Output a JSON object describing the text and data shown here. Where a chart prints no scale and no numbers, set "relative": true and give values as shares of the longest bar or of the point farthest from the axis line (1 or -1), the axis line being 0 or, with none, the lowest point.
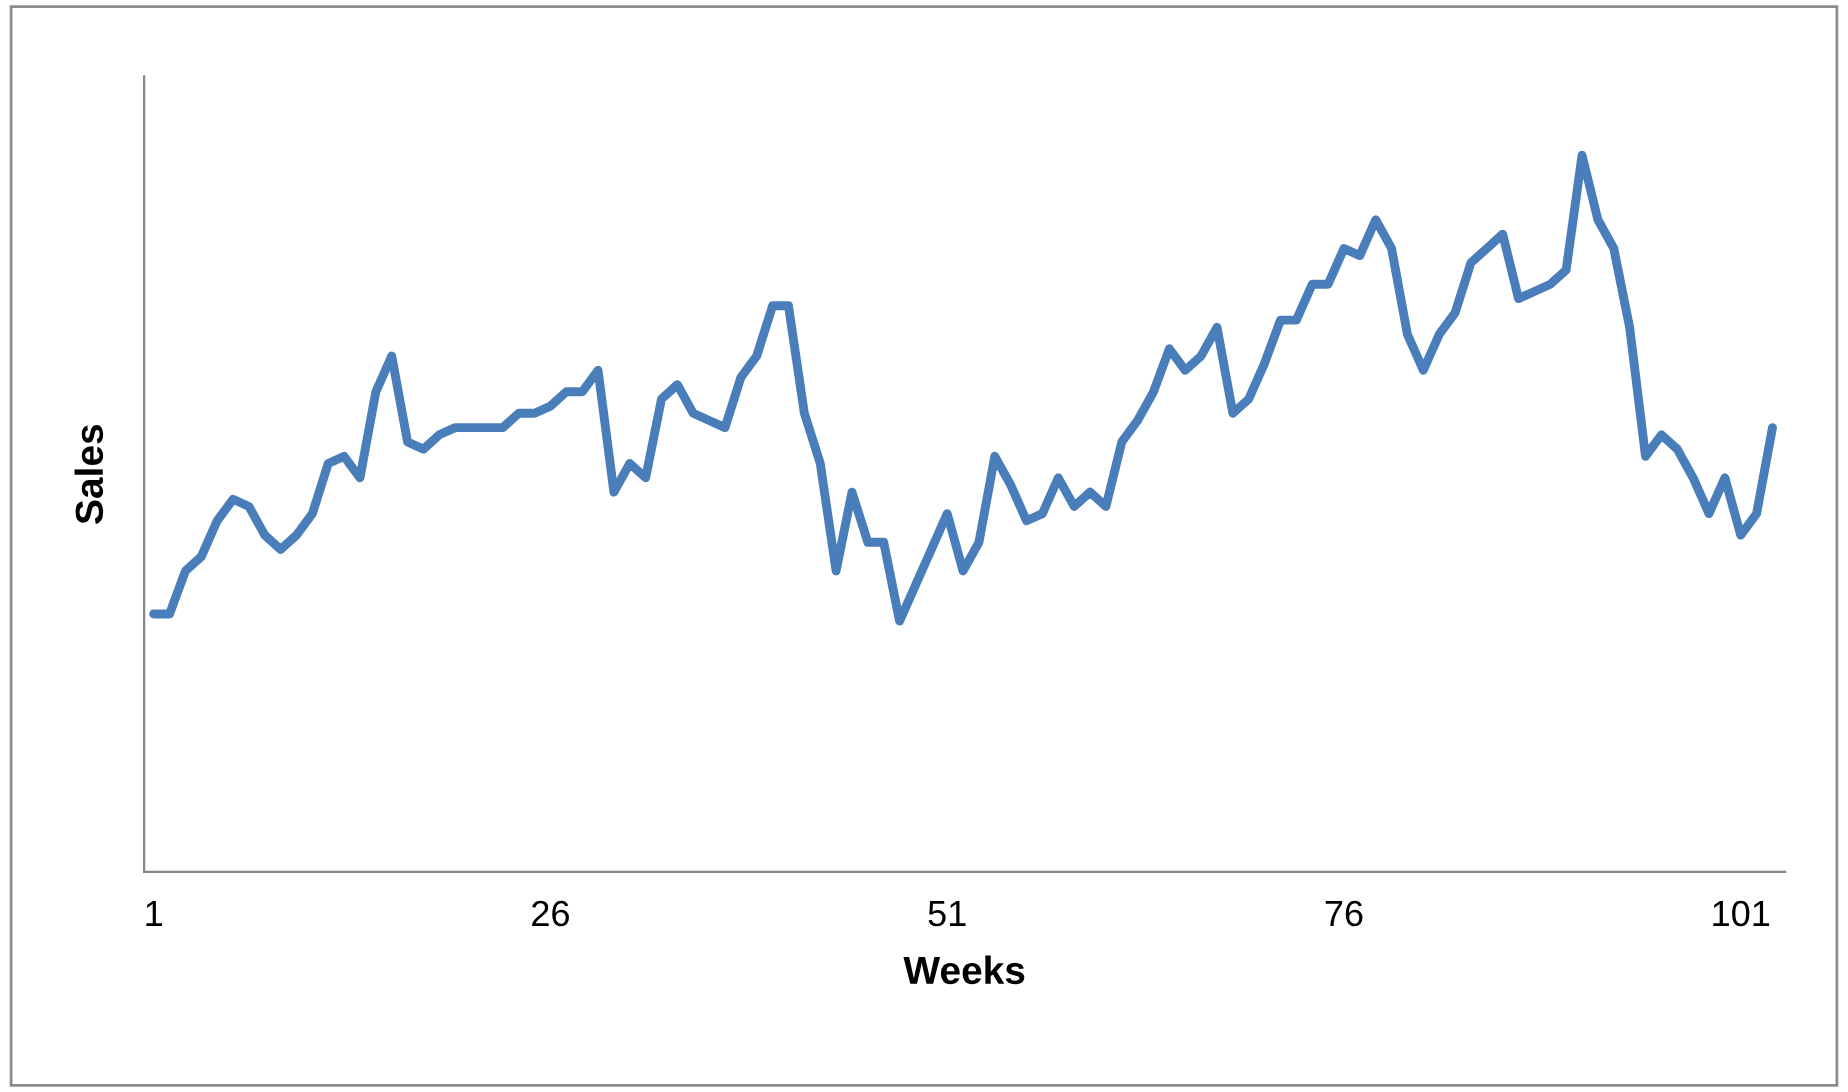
{
  "chart_data": {
    "type": "line",
    "xlabel": "Weeks",
    "ylabel": "Sales",
    "relative": true,
    "color": "#4a7ebb",
    "xlim": [
      0.4,
      103.8
    ],
    "xticks": [
      1,
      26,
      51,
      76,
      101
    ],
    "grid": false,
    "legend": false,
    "marker": "none",
    "line_style": "solid",
    "x": [
      1,
      2,
      3,
      4,
      5,
      6,
      7,
      8,
      9,
      10,
      11,
      12,
      13,
      14,
      15,
      16,
      17,
      18,
      19,
      20,
      21,
      22,
      23,
      24,
      25,
      26,
      27,
      28,
      29,
      30,
      31,
      32,
      33,
      34,
      35,
      36,
      37,
      38,
      39,
      40,
      41,
      42,
      43,
      44,
      45,
      46,
      47,
      48,
      49,
      50,
      51,
      52,
      53,
      54,
      55,
      56,
      57,
      58,
      59,
      60,
      61,
      62,
      63,
      64,
      65,
      66,
      67,
      68,
      69,
      70,
      71,
      72,
      73,
      74,
      75,
      76,
      77,
      78,
      79,
      80,
      81,
      82,
      83,
      84,
      85,
      86,
      87,
      88,
      89,
      90,
      91,
      92,
      93,
      94,
      95,
      96,
      97,
      98,
      99,
      100,
      101,
      102,
      103
    ],
    "values": [
      0.36,
      0.36,
      0.42,
      0.44,
      0.49,
      0.52,
      0.51,
      0.47,
      0.45,
      0.47,
      0.5,
      0.57,
      0.58,
      0.55,
      0.67,
      0.72,
      0.6,
      0.59,
      0.61,
      0.62,
      0.62,
      0.62,
      0.62,
      0.64,
      0.64,
      0.65,
      0.67,
      0.67,
      0.7,
      0.53,
      0.57,
      0.55,
      0.66,
      0.68,
      0.64,
      0.63,
      0.62,
      0.69,
      0.72,
      0.79,
      0.79,
      0.64,
      0.57,
      0.42,
      0.53,
      0.46,
      0.46,
      0.35,
      0.4,
      0.45,
      0.5,
      0.42,
      0.46,
      0.58,
      0.54,
      0.49,
      0.5,
      0.55,
      0.51,
      0.53,
      0.51,
      0.6,
      0.63,
      0.67,
      0.73,
      0.7,
      0.72,
      0.76,
      0.64,
      0.66,
      0.71,
      0.77,
      0.77,
      0.82,
      0.82,
      0.87,
      0.86,
      0.91,
      0.87,
      0.75,
      0.7,
      0.75,
      0.78,
      0.85,
      0.87,
      0.89,
      0.8,
      0.81,
      0.82,
      0.84,
      1,
      0.91,
      0.87,
      0.76,
      0.58,
      0.61,
      0.59,
      0.55,
      0.5,
      0.55,
      0.47,
      0.5,
      0.62
    ]
  }
}
